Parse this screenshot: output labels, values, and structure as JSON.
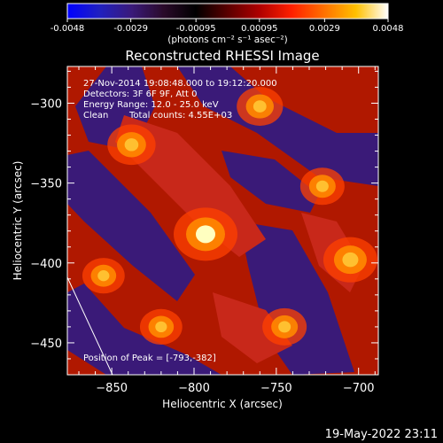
{
  "colorbar": {
    "ticks": [
      "-0.0048",
      "-0.0029",
      "-0.00095",
      "0.00095",
      "0.0029",
      "0.0048"
    ],
    "tick_values": [
      -0.0048,
      -0.0029,
      -0.00095,
      0.00095,
      0.0029,
      0.0048
    ],
    "unit_label": "(photons cm⁻² s⁻¹ asec⁻²)",
    "colors": [
      "#0000ff",
      "#2020c0",
      "#3a1a7a",
      "#2a0a2a",
      "#000000",
      "#5a0000",
      "#b00000",
      "#ff2000",
      "#ff7000",
      "#ffc000",
      "#ffffff"
    ]
  },
  "chart_data": {
    "type": "heatmap",
    "title": "Reconstructed RHESSI Image",
    "xlabel": "Heliocentric X (arcsec)",
    "ylabel": "Heliocentric Y (arcsec)",
    "xlim": [
      -877,
      -688
    ],
    "ylim": [
      -470,
      -277
    ],
    "xticks": [
      -850,
      -800,
      -750,
      -700
    ],
    "yticks": [
      -300,
      -350,
      -400,
      -450
    ],
    "xtick_labels": [
      "−850",
      "−800",
      "−750",
      "−700"
    ],
    "ytick_labels": [
      "−300",
      "−350",
      "−400",
      "−450"
    ],
    "peak": [
      -793,
      -382
    ],
    "bright_spots": [
      {
        "x": -793,
        "y": -382,
        "level": 1.0
      },
      {
        "x": -705,
        "y": -398,
        "level": 0.75
      },
      {
        "x": -838,
        "y": -326,
        "level": 0.6
      },
      {
        "x": -760,
        "y": -302,
        "level": 0.55
      },
      {
        "x": -722,
        "y": -352,
        "level": 0.5
      },
      {
        "x": -855,
        "y": -408,
        "level": 0.45
      },
      {
        "x": -820,
        "y": -440,
        "level": 0.45
      },
      {
        "x": -745,
        "y": -440,
        "level": 0.5
      }
    ]
  },
  "annotations": {
    "time_range": "27-Nov-2014 19:08:48.000 to 19:12:20.000",
    "detectors": "Detectors: 3F 6F 9F, Att 0",
    "energy": "Energy Range: 12.0 - 25.0 keV",
    "method": "Clean",
    "counts": "Total counts: 4.55E+03",
    "peak_label": "Position of Peak = [-793,-382]"
  },
  "footer": {
    "date": "19-May-2022 23:11"
  }
}
